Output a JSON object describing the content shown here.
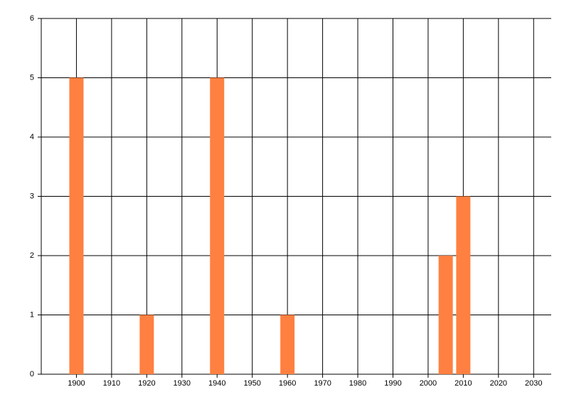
{
  "chart_data": {
    "type": "bar",
    "x": [
      1900,
      1920,
      1940,
      1960,
      2005,
      2010
    ],
    "values": [
      5,
      1,
      5,
      1,
      2,
      3
    ],
    "color": "#ff8040",
    "xlim": [
      1890,
      2035
    ],
    "xticks": [
      1900,
      1910,
      1920,
      1930,
      1940,
      1950,
      1960,
      1970,
      1980,
      1990,
      2000,
      2010,
      2020,
      2030
    ],
    "ylim": [
      0,
      6
    ],
    "yticks": [
      0,
      1,
      2,
      3,
      4,
      5,
      6
    ],
    "grid": true
  }
}
